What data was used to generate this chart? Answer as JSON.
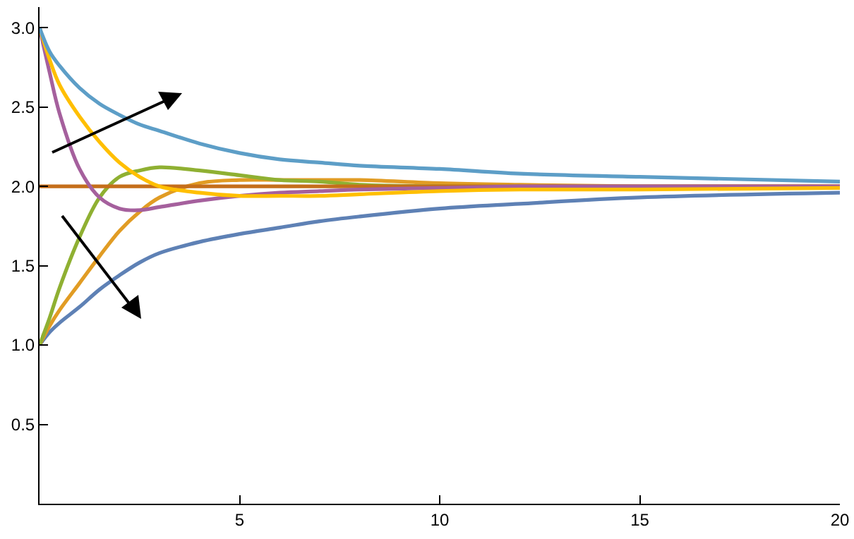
{
  "chart_data": {
    "type": "line",
    "x": [
      0,
      0.25,
      0.5,
      1,
      1.5,
      2,
      2.5,
      3,
      4,
      5,
      6,
      7,
      8,
      10,
      12,
      15,
      20
    ],
    "series": [
      {
        "color": "#5e81b5",
        "values": [
          1,
          1.08,
          1.14,
          1.24,
          1.35,
          1.44,
          1.52,
          1.58,
          1.65,
          1.7,
          1.74,
          1.78,
          1.81,
          1.86,
          1.89,
          1.93,
          1.96
        ]
      },
      {
        "color": "#e19c24",
        "values": [
          1,
          1.12,
          1.22,
          1.39,
          1.56,
          1.72,
          1.84,
          1.93,
          2.02,
          2.04,
          2.04,
          2.04,
          2.04,
          2.02,
          2.01,
          2.0,
          2.0
        ]
      },
      {
        "color": "#8fb032",
        "values": [
          1,
          1.17,
          1.36,
          1.68,
          1.93,
          2.06,
          2.1,
          2.12,
          2.1,
          2.07,
          2.04,
          2.03,
          2.01,
          2.0,
          2.0,
          null,
          null
        ]
      },
      {
        "color": "#c56e1a",
        "values": [
          2,
          2,
          2,
          2,
          2,
          2,
          2,
          2,
          2,
          2,
          2,
          2,
          2,
          2,
          2,
          2,
          2
        ]
      },
      {
        "color": "#a5609d",
        "values": [
          3,
          2.72,
          2.46,
          2.11,
          1.93,
          1.86,
          1.85,
          1.87,
          1.91,
          1.94,
          1.96,
          1.97,
          1.98,
          1.99,
          2.0,
          2.0,
          2.0
        ]
      },
      {
        "color": "#ffbf00",
        "values": [
          3,
          2.8,
          2.64,
          2.44,
          2.28,
          2.15,
          2.06,
          2.0,
          1.96,
          1.94,
          1.94,
          1.94,
          1.95,
          1.97,
          1.98,
          1.98,
          1.99
        ]
      },
      {
        "color": "#5d9ec7",
        "values": [
          3,
          2.85,
          2.76,
          2.62,
          2.52,
          2.45,
          2.39,
          2.35,
          2.27,
          2.21,
          2.17,
          2.15,
          2.13,
          2.11,
          2.08,
          2.06,
          2.03
        ]
      }
    ],
    "xlim": [
      0,
      20
    ],
    "ylim": [
      0,
      3.13
    ],
    "xticks": [
      5,
      10,
      15,
      20
    ],
    "yticks": [
      0.5,
      {
        "value": 1,
        "label": "1.0"
      },
      1.5,
      {
        "value": 2,
        "label": "2.0"
      },
      2.5,
      {
        "value": 3,
        "label": "3.0"
      }
    ],
    "grid": false,
    "marker": "none",
    "line_style": "solid"
  }
}
